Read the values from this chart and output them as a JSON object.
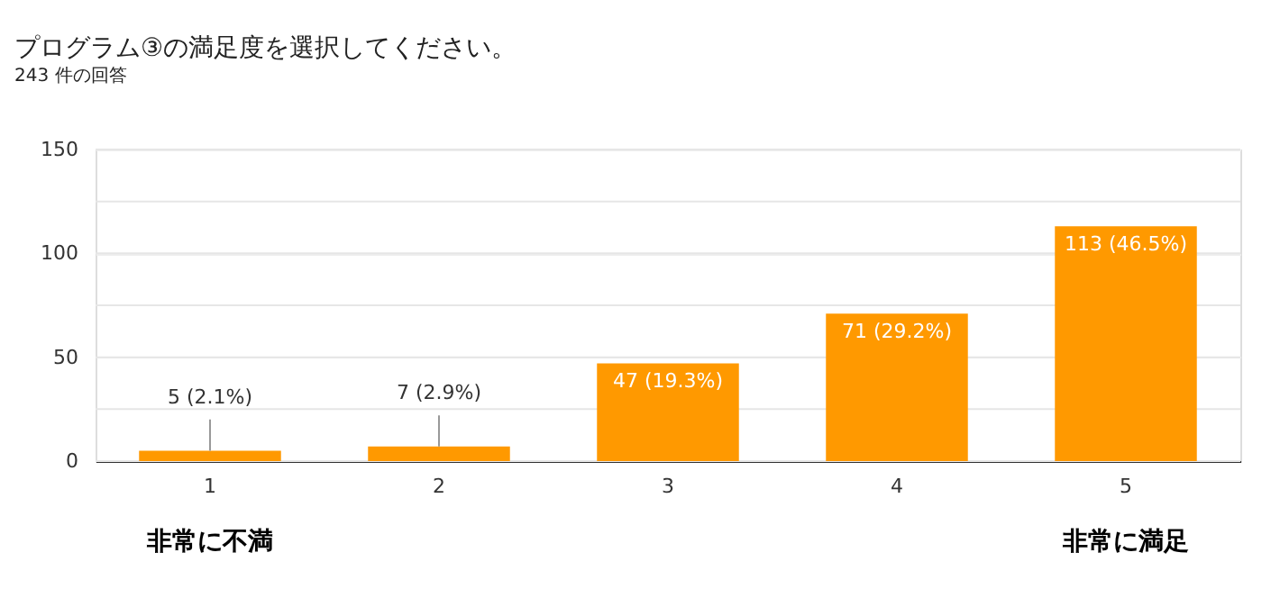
{
  "chart_data": {
    "type": "bar",
    "title": "プログラム③の満足度を選択してください。",
    "subtitle": "243 件の回答",
    "categories": [
      "1",
      "2",
      "3",
      "4",
      "5"
    ],
    "values": [
      5,
      7,
      47,
      71,
      113
    ],
    "value_labels": [
      "5 (2.1%)",
      "7 (2.9%)",
      "47 (19.3%)",
      "71 (29.2%)",
      "113 (46.5%)"
    ],
    "color": "#ff9900",
    "ylim": [
      0,
      150
    ],
    "yticks": [
      0,
      {
        "value": 25,
        "label": null
      },
      50,
      {
        "value": 75,
        "label": null
      },
      100,
      {
        "value": 125,
        "label": null
      },
      150
    ],
    "grid": true,
    "annotations": [
      "非常に不満",
      "非常に満足"
    ]
  }
}
